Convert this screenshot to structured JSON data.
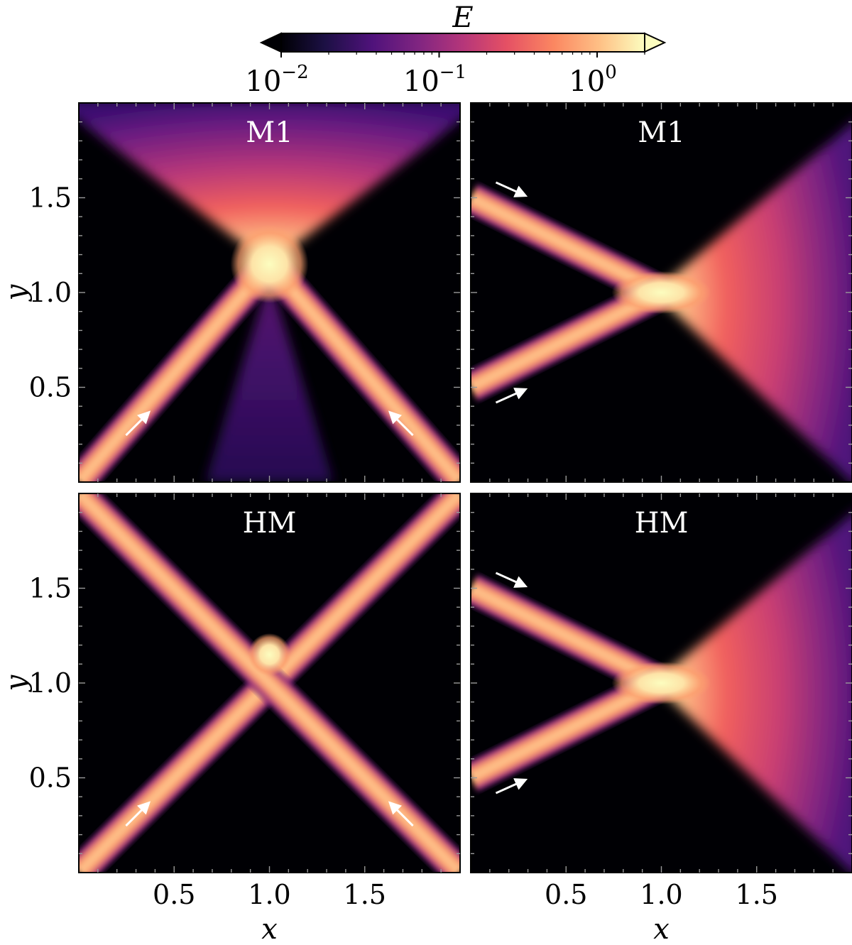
{
  "figure": {
    "colorbar": {
      "label": "E",
      "scale": "log",
      "range": [
        0.01,
        2.0
      ],
      "extend": "both",
      "colormap": "magma",
      "ticks": [
        {
          "base": "10",
          "exp": "−2",
          "value": 0.01
        },
        {
          "base": "10",
          "exp": "−1",
          "value": 0.1
        },
        {
          "base": "10",
          "exp": "0",
          "value": 1.0
        }
      ],
      "colors": [
        "#000004",
        "#1c1044",
        "#4f127b",
        "#812581",
        "#b5367a",
        "#e55064",
        "#fb8761",
        "#fec287",
        "#fcfdbf"
      ]
    },
    "panels": [
      {
        "label": "M1"
      },
      {
        "label": "M1"
      },
      {
        "label": "HM"
      },
      {
        "label": "HM"
      }
    ],
    "x_ticks": [
      "0.5",
      "1.0",
      "1.5"
    ],
    "y_ticks": [
      "1.5",
      "1.0",
      "0.5"
    ],
    "x_label": "x",
    "y_label": "y"
  },
  "chart_data": {
    "type": "heatmap",
    "quantity": "E",
    "color_scale": "log",
    "color_range": [
      0.01,
      2.0
    ],
    "xlim": [
      0,
      2
    ],
    "ylim": [
      0,
      2
    ],
    "xlabel": "x",
    "ylabel": "y",
    "xticks": [
      0.5,
      1.0,
      1.5
    ],
    "yticks": [
      0.5,
      1.0,
      1.5
    ],
    "panels": [
      {
        "label": "M1",
        "row": 1,
        "col": 1,
        "beams": [
          {
            "from": [
              0.0,
              0.0
            ],
            "to": [
              1.0,
              1.15
            ],
            "end": [
              2.0,
              2.0
            ]
          },
          {
            "from": [
              2.0,
              0.0
            ],
            "to": [
              1.0,
              1.15
            ],
            "end": [
              0.0,
              2.0
            ]
          }
        ],
        "crossing_point": [
          1.0,
          1.15
        ],
        "peak_E": 2.0,
        "outflow": {
          "direction": "+y",
          "E_range": [
            0.05,
            0.6
          ]
        },
        "arrows": [
          {
            "at": [
              0.3,
              0.3
            ],
            "dir": "up-right"
          },
          {
            "at": [
              1.7,
              0.3
            ],
            "dir": "up-left"
          }
        ]
      },
      {
        "label": "M1",
        "row": 1,
        "col": 2,
        "beams": [
          {
            "from": [
              0.0,
              1.5
            ],
            "to": [
              1.0,
              1.0
            ]
          },
          {
            "from": [
              0.0,
              0.5
            ],
            "to": [
              1.0,
              1.0
            ]
          }
        ],
        "crossing_point": [
          1.0,
          1.0
        ],
        "peak_E": 2.0,
        "outflow": {
          "direction": "+x",
          "E_range": [
            0.05,
            0.6
          ]
        },
        "arrows": [
          {
            "at": [
              0.2,
              1.55
            ],
            "dir": "down-right"
          },
          {
            "at": [
              0.2,
              0.45
            ],
            "dir": "up-right"
          }
        ]
      },
      {
        "label": "HM",
        "row": 2,
        "col": 1,
        "beams": [
          {
            "from": [
              0.0,
              0.0
            ],
            "to": [
              2.0,
              2.0
            ]
          },
          {
            "from": [
              2.0,
              0.0
            ],
            "to": [
              0.0,
              2.0
            ]
          }
        ],
        "crossing_point": [
          1.0,
          1.15
        ],
        "peak_E": 2.0,
        "outflow": null,
        "arrows": [
          {
            "at": [
              0.3,
              0.3
            ],
            "dir": "up-right"
          },
          {
            "at": [
              1.7,
              0.3
            ],
            "dir": "up-left"
          }
        ]
      },
      {
        "label": "HM",
        "row": 2,
        "col": 2,
        "beams": [
          {
            "from": [
              0.0,
              1.5
            ],
            "to": [
              1.0,
              1.0
            ]
          },
          {
            "from": [
              0.0,
              0.5
            ],
            "to": [
              1.0,
              1.0
            ]
          }
        ],
        "crossing_point": [
          1.0,
          1.0
        ],
        "peak_E": 2.0,
        "outflow": {
          "direction": "+x",
          "E_range": [
            0.05,
            0.6
          ]
        },
        "arrows": [
          {
            "at": [
              0.2,
              1.55
            ],
            "dir": "down-right"
          },
          {
            "at": [
              0.2,
              0.45
            ],
            "dir": "up-right"
          }
        ]
      }
    ]
  }
}
